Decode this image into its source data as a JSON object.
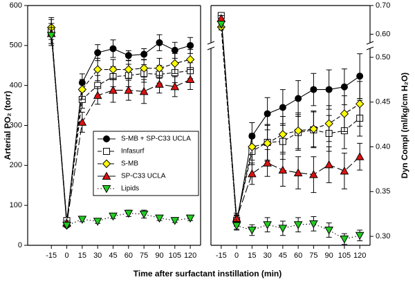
{
  "chart_data": [
    {
      "type": "line",
      "ylabel": "Arterial PO₂ (torr)",
      "xlabel": "Time after surfactant instillation (min)",
      "x": [
        -15,
        0,
        15,
        30,
        45,
        60,
        75,
        90,
        105,
        120
      ],
      "xlim": [
        -38,
        130
      ],
      "xticks": [
        -15,
        0,
        15,
        30,
        45,
        60,
        75,
        90,
        105,
        120
      ],
      "ylim": [
        0,
        600
      ],
      "yticks": [
        0,
        100,
        200,
        300,
        400,
        500,
        600
      ],
      "yaxis_side": "left",
      "legend": "center right",
      "series": [
        {
          "name": "S-MB + SP-C33 UCLA",
          "color": "#000000",
          "marker": "circle",
          "line_style": "solid",
          "values": [
            535,
            58,
            407,
            482,
            492,
            475,
            478,
            507,
            488,
            500
          ],
          "errors": [
            35,
            8,
            22,
            20,
            22,
            12,
            14,
            20,
            20,
            20
          ]
        },
        {
          "name": "Infasurf",
          "color": "#ffffff",
          "marker": "square",
          "line_style": "dashed",
          "values": [
            535,
            62,
            365,
            400,
            422,
            425,
            430,
            428,
            432,
            437
          ],
          "errors": [
            20,
            6,
            22,
            25,
            25,
            28,
            22,
            22,
            25,
            20
          ]
        },
        {
          "name": "S-MB",
          "color": "#ffff00",
          "marker": "diamond",
          "line_style": "dashed",
          "values": [
            545,
            50,
            390,
            440,
            440,
            440,
            443,
            443,
            455,
            465
          ],
          "errors": [
            20,
            5,
            25,
            28,
            25,
            22,
            22,
            25,
            25,
            25
          ]
        },
        {
          "name": "SP-C33 UCLA",
          "color": "#dd1111",
          "marker": "triangle-up",
          "line_style": "longdash",
          "values": [
            530,
            55,
            308,
            375,
            388,
            388,
            385,
            403,
            397,
            415
          ],
          "errors": [
            25,
            6,
            25,
            22,
            30,
            25,
            30,
            22,
            25,
            25
          ]
        },
        {
          "name": "Lipids",
          "color": "#22cc22",
          "marker": "triangle-down",
          "line_style": "dotted",
          "values": [
            525,
            50,
            65,
            60,
            73,
            80,
            78,
            68,
            62,
            68
          ],
          "errors": [
            20,
            5,
            6,
            5,
            6,
            8,
            10,
            6,
            5,
            6
          ]
        }
      ]
    },
    {
      "type": "line",
      "ylabel": "Dyn Compl (ml/kg/cm H₂O)",
      "x": [
        -15,
        0,
        15,
        30,
        45,
        60,
        75,
        90,
        105,
        120
      ],
      "xlim": [
        -25,
        130
      ],
      "xticks": [
        -15,
        0,
        15,
        30,
        45,
        60,
        75,
        90,
        105,
        120
      ],
      "ylim": [
        0.29,
        0.7
      ],
      "axis_break": [
        0.51,
        0.57
      ],
      "yaxis_side": "right",
      "yticks": [
        {
          "value": 0.3,
          "label": "0.30"
        },
        0.35,
        {
          "value": 0.4,
          "label": "0.40"
        },
        0.45,
        {
          "value": 0.5,
          "label": "0.50"
        },
        {
          "value": 0.6,
          "label": "0.60"
        },
        {
          "value": 0.7,
          "label": "0.70"
        }
      ],
      "series": [
        {
          "name": "S-MB + SP-C33 UCLA",
          "color": "#000000",
          "marker": "circle",
          "line_style": "solid",
          "values": [
            0.665,
            0.315,
            0.412,
            0.437,
            0.444,
            0.454,
            0.464,
            0.464,
            0.467,
            0.479
          ],
          "errors": [
            0.01,
            0.008,
            0.015,
            0.018,
            0.02,
            0.02,
            0.018,
            0.022,
            0.02,
            0.025
          ]
        },
        {
          "name": "Infasurf",
          "color": "#ffffff",
          "marker": "square",
          "line_style": "dashed",
          "values": [
            0.665,
            0.318,
            0.395,
            0.405,
            0.406,
            0.416,
            0.419,
            0.415,
            0.418,
            0.432
          ],
          "errors": [
            0.01,
            0.006,
            0.015,
            0.02,
            0.02,
            0.02,
            0.02,
            0.02,
            0.02,
            0.02
          ]
        },
        {
          "name": "S-MB",
          "color": "#ffff00",
          "marker": "diamond",
          "line_style": "dashed",
          "values": [
            0.625,
            0.317,
            0.4,
            0.404,
            0.414,
            0.418,
            0.42,
            0.426,
            0.437,
            0.448
          ],
          "errors": [
            0.01,
            0.006,
            0.015,
            0.02,
            0.02,
            0.02,
            0.02,
            0.02,
            0.02,
            0.025
          ]
        },
        {
          "name": "SP-C33 UCLA",
          "color": "#dd1111",
          "marker": "triangle-up",
          "line_style": "longdash",
          "values": [
            0.655,
            0.32,
            0.37,
            0.382,
            0.374,
            0.371,
            0.369,
            0.38,
            0.373,
            0.389
          ],
          "errors": [
            0.01,
            0.006,
            0.012,
            0.015,
            0.018,
            0.018,
            0.02,
            0.02,
            0.02,
            0.015
          ]
        },
        {
          "name": "Lipids",
          "color": "#22cc22",
          "marker": "triangle-down",
          "line_style": "dotted",
          "values": [
            0.635,
            0.312,
            0.307,
            0.313,
            0.309,
            0.313,
            0.314,
            0.307,
            0.297,
            0.301
          ],
          "errors": [
            0.01,
            0.004,
            0.006,
            0.008,
            0.008,
            0.008,
            0.008,
            0.008,
            0.006,
            0.006
          ]
        }
      ]
    }
  ]
}
